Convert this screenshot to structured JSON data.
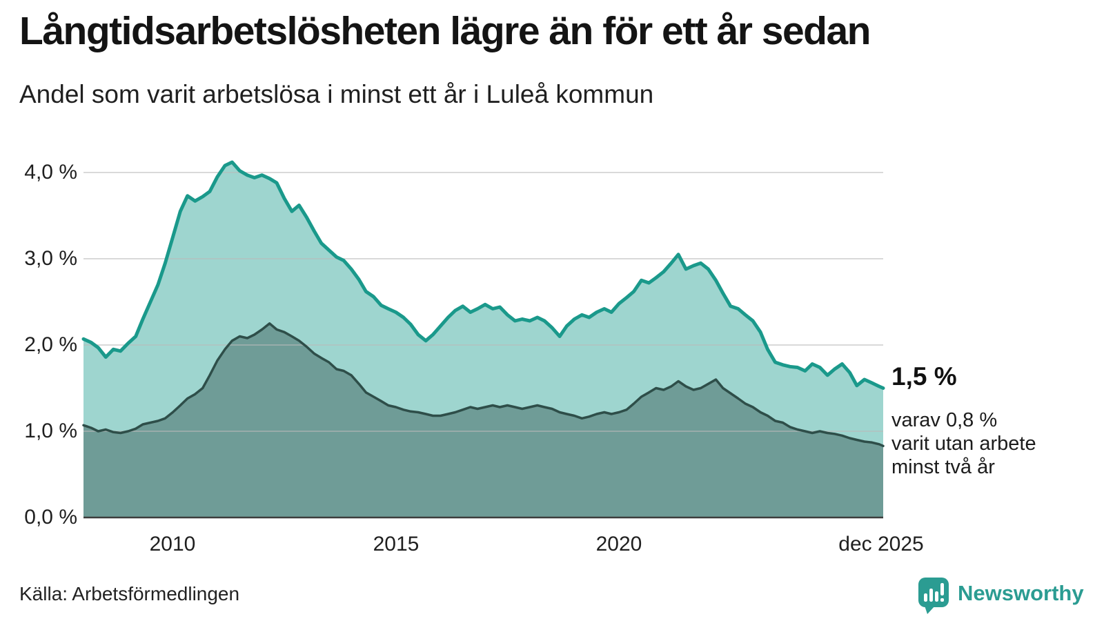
{
  "header": {
    "title": "Långtidsarbetslösheten lägre än för ett år sedan",
    "subtitle": "Andel som varit arbetslösa i minst ett år i Luleå kommun"
  },
  "annotation": {
    "value_label": "1,5 %",
    "detail_lines": [
      "varav 0,8 %",
      "varit utan arbete",
      "minst två år"
    ]
  },
  "source": "Källa: Arbetsförmedlingen",
  "brand": {
    "name": "Newsworthy",
    "logo_icon": "speech-bubble-bar-chart-icon",
    "color": "#2b9c92"
  },
  "colors": {
    "background": "#ffffff",
    "series_1yr_line": "#1a998b",
    "series_1yr_fill": "#9ed5cf",
    "series_2yr_line": "#2e4e49",
    "series_2yr_fill": "#6f9c97",
    "gridline": "rgba(185,185,185,0.55)",
    "axis_line": "#3d3d3d",
    "text": "#141414"
  },
  "chart_data": {
    "type": "area",
    "title": "Långtidsarbetslösheten lägre än för ett år sedan",
    "subtitle": "Andel som varit arbetslösa i minst ett år i Luleå kommun",
    "unit": "%",
    "xlim": [
      2008.0,
      2025.92
    ],
    "ylim": [
      0,
      4.3
    ],
    "grid": true,
    "legend": "none",
    "y_ticks": [
      {
        "label": "4,0 %",
        "value": 4
      },
      {
        "label": "3,0 %",
        "value": 3
      },
      {
        "label": "2,0 %",
        "value": 2
      },
      {
        "label": "1,0 %",
        "value": 1
      },
      {
        "label": "0,0 %",
        "value": 0
      }
    ],
    "x_ticks": [
      {
        "label": "2010",
        "year": 2010
      },
      {
        "label": "2015",
        "year": 2015
      },
      {
        "label": "2020",
        "year": 2020
      },
      {
        "label": "dec 2025",
        "year": 2025.92
      }
    ],
    "x": [
      2008.0,
      2008.17,
      2008.33,
      2008.5,
      2008.67,
      2008.83,
      2009.0,
      2009.17,
      2009.33,
      2009.5,
      2009.67,
      2009.83,
      2010.0,
      2010.17,
      2010.33,
      2010.5,
      2010.67,
      2010.83,
      2011.0,
      2011.17,
      2011.33,
      2011.5,
      2011.67,
      2011.83,
      2012.0,
      2012.17,
      2012.33,
      2012.5,
      2012.67,
      2012.83,
      2013.0,
      2013.17,
      2013.33,
      2013.5,
      2013.67,
      2013.83,
      2014.0,
      2014.17,
      2014.33,
      2014.5,
      2014.67,
      2014.83,
      2015.0,
      2015.17,
      2015.33,
      2015.5,
      2015.67,
      2015.83,
      2016.0,
      2016.17,
      2016.33,
      2016.5,
      2016.67,
      2016.83,
      2017.0,
      2017.17,
      2017.33,
      2017.5,
      2017.67,
      2017.83,
      2018.0,
      2018.17,
      2018.33,
      2018.5,
      2018.67,
      2018.83,
      2019.0,
      2019.17,
      2019.33,
      2019.5,
      2019.67,
      2019.83,
      2020.0,
      2020.17,
      2020.33,
      2020.5,
      2020.67,
      2020.83,
      2021.0,
      2021.17,
      2021.33,
      2021.5,
      2021.67,
      2021.83,
      2022.0,
      2022.17,
      2022.33,
      2022.5,
      2022.67,
      2022.83,
      2023.0,
      2023.17,
      2023.33,
      2023.5,
      2023.67,
      2023.83,
      2024.0,
      2024.17,
      2024.33,
      2024.5,
      2024.67,
      2024.83,
      2025.0,
      2025.17,
      2025.33,
      2025.5,
      2025.67,
      2025.83,
      2025.92
    ],
    "series": [
      {
        "name": "arbetslösa minst ett år",
        "color": "#1a998b",
        "fill": "#9ed5cf",
        "line_width": 5,
        "end_value_label": "1,5 %",
        "values": [
          2.07,
          2.03,
          1.97,
          1.86,
          1.95,
          1.93,
          2.02,
          2.1,
          2.3,
          2.5,
          2.7,
          2.95,
          3.25,
          3.55,
          3.73,
          3.67,
          3.72,
          3.78,
          3.95,
          4.08,
          4.12,
          4.02,
          3.97,
          3.94,
          3.97,
          3.93,
          3.88,
          3.7,
          3.55,
          3.62,
          3.48,
          3.32,
          3.18,
          3.1,
          3.02,
          2.98,
          2.88,
          2.76,
          2.62,
          2.56,
          2.46,
          2.42,
          2.38,
          2.32,
          2.24,
          2.12,
          2.05,
          2.12,
          2.22,
          2.32,
          2.4,
          2.45,
          2.38,
          2.42,
          2.47,
          2.42,
          2.44,
          2.35,
          2.28,
          2.3,
          2.28,
          2.32,
          2.28,
          2.2,
          2.1,
          2.22,
          2.3,
          2.35,
          2.32,
          2.38,
          2.42,
          2.38,
          2.48,
          2.55,
          2.62,
          2.75,
          2.72,
          2.78,
          2.85,
          2.95,
          3.05,
          2.88,
          2.92,
          2.95,
          2.88,
          2.75,
          2.6,
          2.45,
          2.42,
          2.35,
          2.28,
          2.15,
          1.95,
          1.8,
          1.77,
          1.75,
          1.74,
          1.7,
          1.78,
          1.74,
          1.65,
          1.72,
          1.78,
          1.68,
          1.53,
          1.6,
          1.56,
          1.52,
          1.5
        ]
      },
      {
        "name": "arbetslösa minst två år",
        "color": "#2e4e49",
        "fill": "#6f9c97",
        "line_width": 3.5,
        "end_value_label": "0,8 %",
        "values": [
          1.07,
          1.04,
          1.0,
          1.02,
          0.99,
          0.98,
          1.0,
          1.03,
          1.08,
          1.1,
          1.12,
          1.15,
          1.22,
          1.3,
          1.38,
          1.43,
          1.5,
          1.65,
          1.82,
          1.95,
          2.05,
          2.1,
          2.08,
          2.12,
          2.18,
          2.25,
          2.18,
          2.15,
          2.1,
          2.05,
          1.98,
          1.9,
          1.85,
          1.8,
          1.72,
          1.7,
          1.65,
          1.55,
          1.45,
          1.4,
          1.35,
          1.3,
          1.28,
          1.25,
          1.23,
          1.22,
          1.2,
          1.18,
          1.18,
          1.2,
          1.22,
          1.25,
          1.28,
          1.26,
          1.28,
          1.3,
          1.28,
          1.3,
          1.28,
          1.26,
          1.28,
          1.3,
          1.28,
          1.26,
          1.22,
          1.2,
          1.18,
          1.15,
          1.17,
          1.2,
          1.22,
          1.2,
          1.22,
          1.25,
          1.32,
          1.4,
          1.45,
          1.5,
          1.48,
          1.52,
          1.58,
          1.52,
          1.48,
          1.5,
          1.55,
          1.6,
          1.5,
          1.44,
          1.38,
          1.32,
          1.28,
          1.22,
          1.18,
          1.12,
          1.1,
          1.05,
          1.02,
          1.0,
          0.98,
          1.0,
          0.98,
          0.97,
          0.95,
          0.92,
          0.9,
          0.88,
          0.87,
          0.85,
          0.83
        ]
      }
    ]
  }
}
